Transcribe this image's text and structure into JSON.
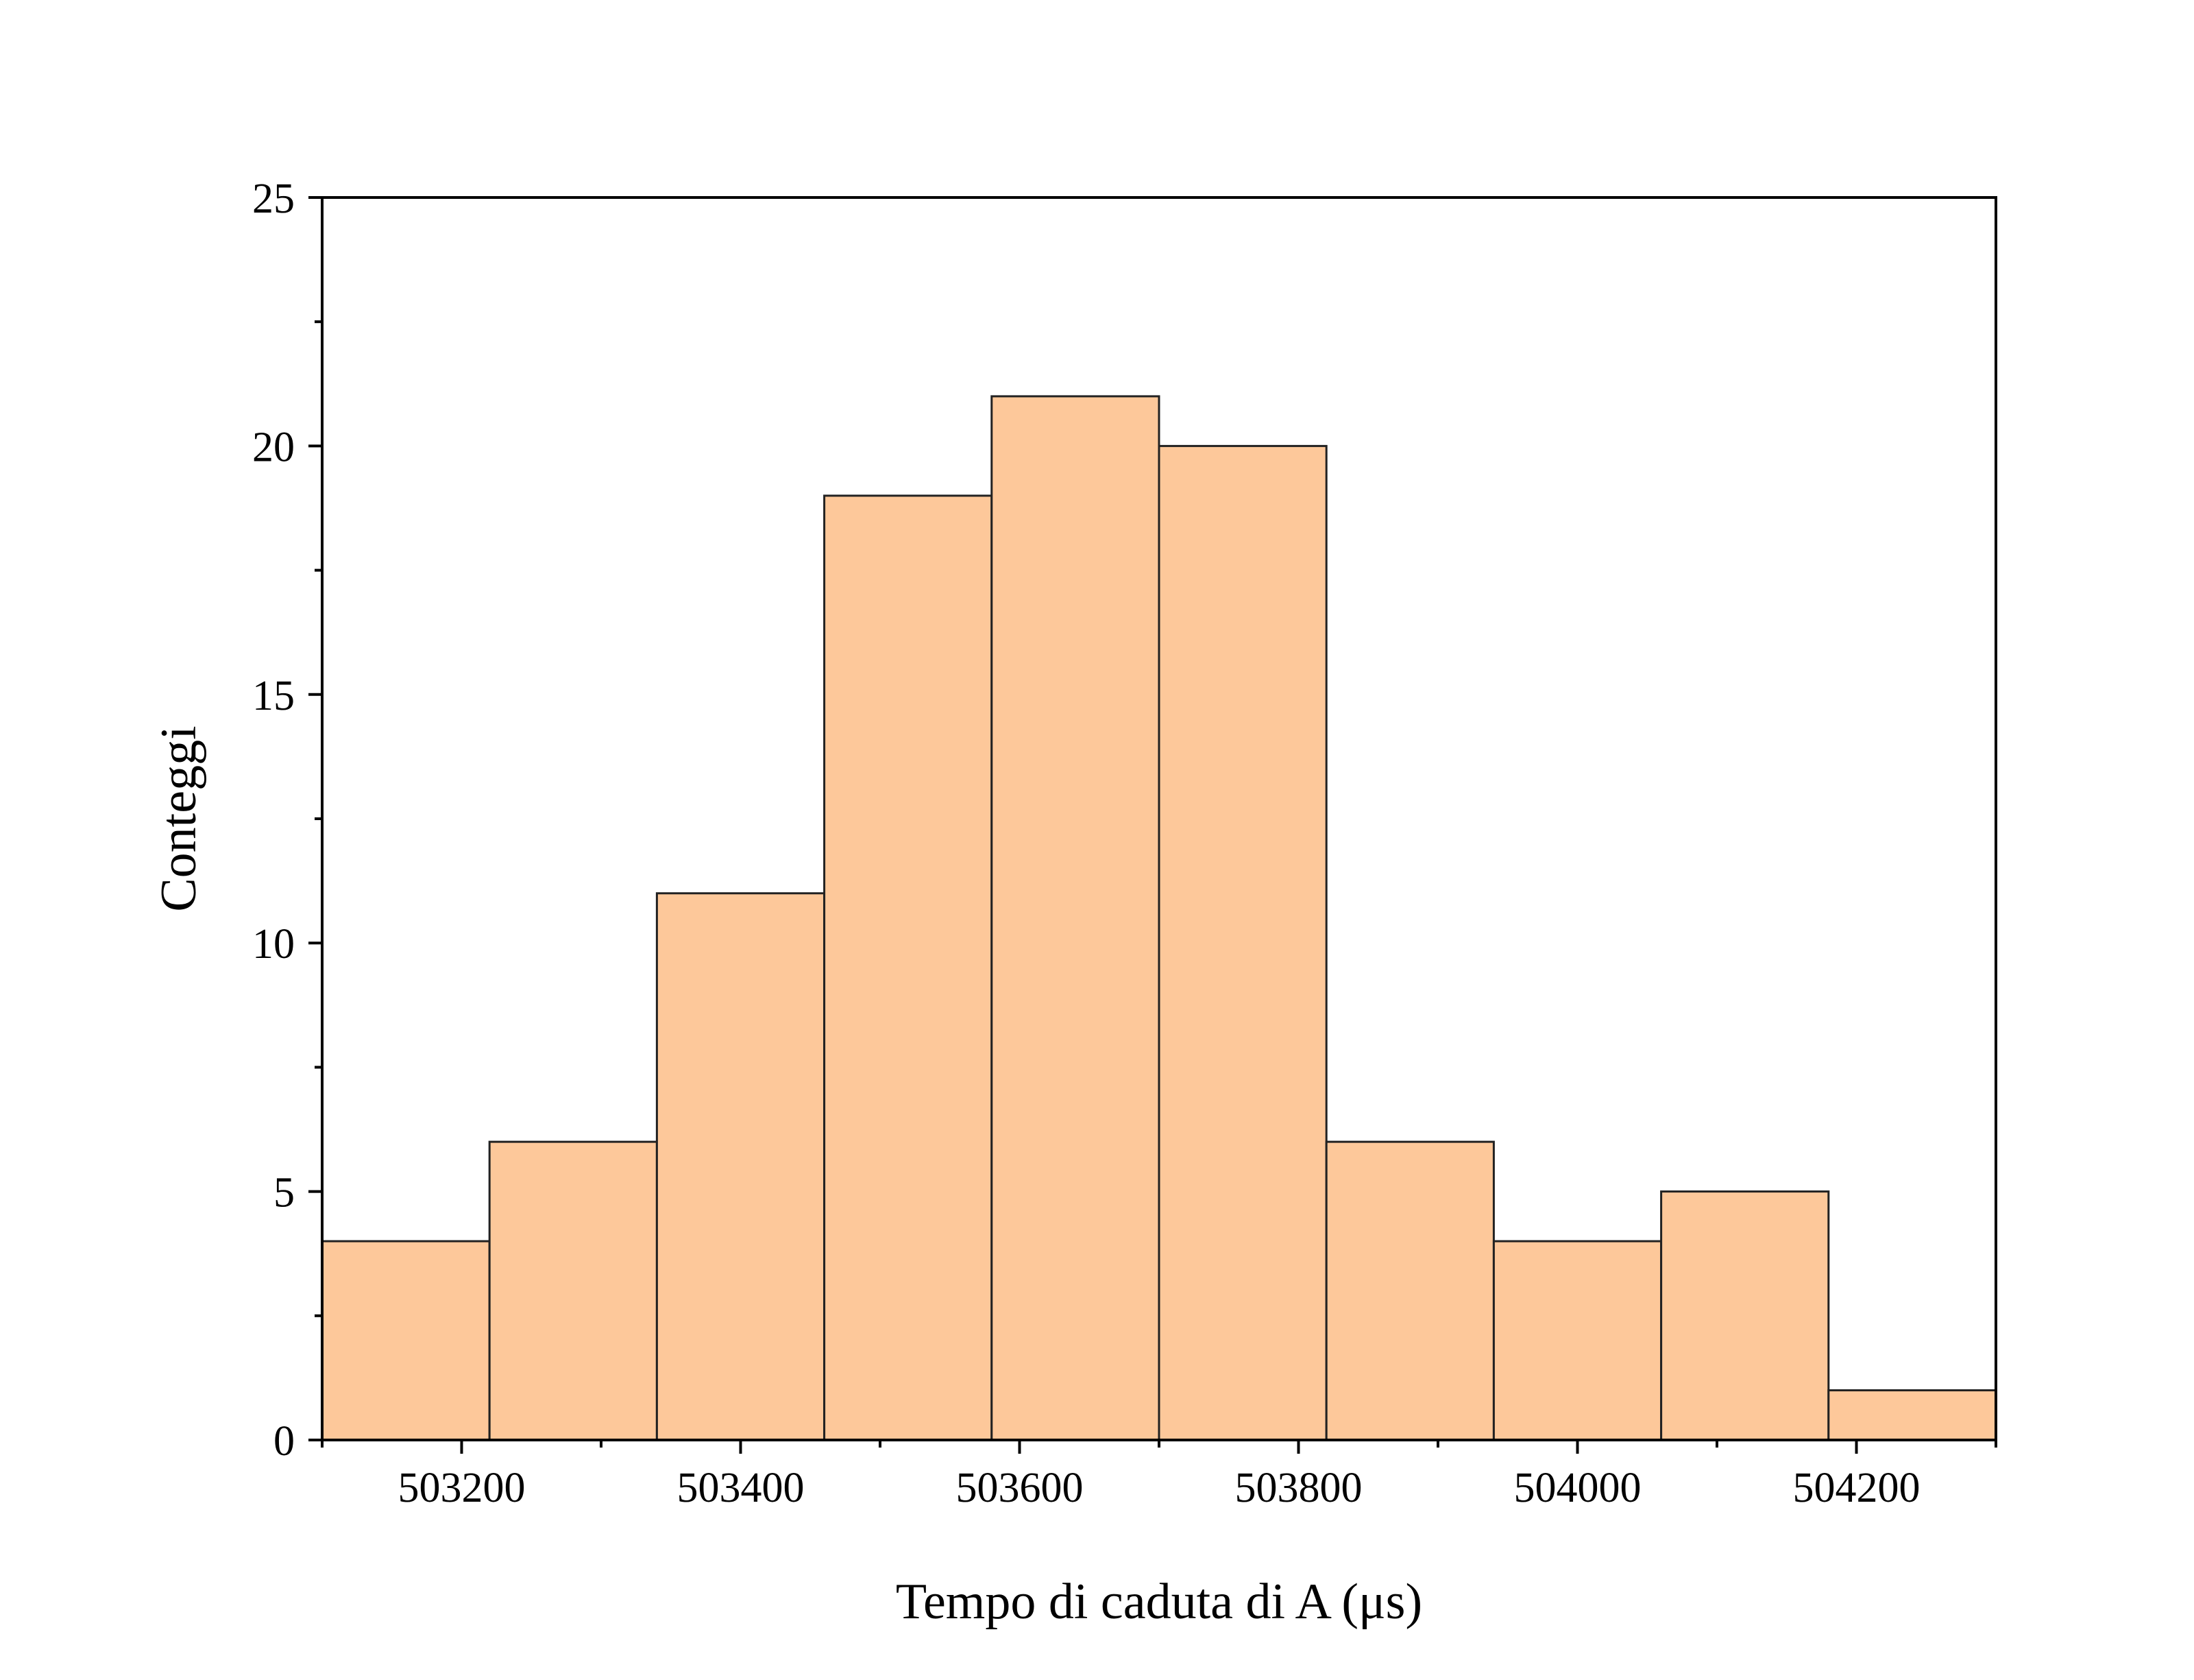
{
  "chart_data": {
    "type": "bar",
    "subtype": "histogram",
    "title": "",
    "xlabel": "Tempo di caduta di A (μs)",
    "ylabel": "Conteggi",
    "xlim": [
      503100,
      504300
    ],
    "ylim": [
      0,
      25
    ],
    "x_ticks": [
      503200,
      503400,
      503600,
      503800,
      504000,
      504200
    ],
    "x_tick_labels": [
      "503200",
      "503400",
      "503600",
      "503800",
      "504000",
      "504200"
    ],
    "y_ticks": [
      0,
      5,
      10,
      15,
      20,
      25
    ],
    "y_tick_labels": [
      "0",
      "5",
      "10",
      "15",
      "20",
      "25"
    ],
    "bins": [
      {
        "start": 503100,
        "end": 503220,
        "count": 4
      },
      {
        "start": 503220,
        "end": 503340,
        "count": 6
      },
      {
        "start": 503340,
        "end": 503460,
        "count": 11
      },
      {
        "start": 503460,
        "end": 503580,
        "count": 19
      },
      {
        "start": 503580,
        "end": 503700,
        "count": 21
      },
      {
        "start": 503700,
        "end": 503820,
        "count": 20
      },
      {
        "start": 503820,
        "end": 503940,
        "count": 6
      },
      {
        "start": 503940,
        "end": 504060,
        "count": 4
      },
      {
        "start": 504060,
        "end": 504180,
        "count": 5
      },
      {
        "start": 504180,
        "end": 504300,
        "count": 1
      }
    ],
    "bar_color": "#FDC89A",
    "bar_edge_color": "#222222",
    "grid": false,
    "legend": false
  }
}
